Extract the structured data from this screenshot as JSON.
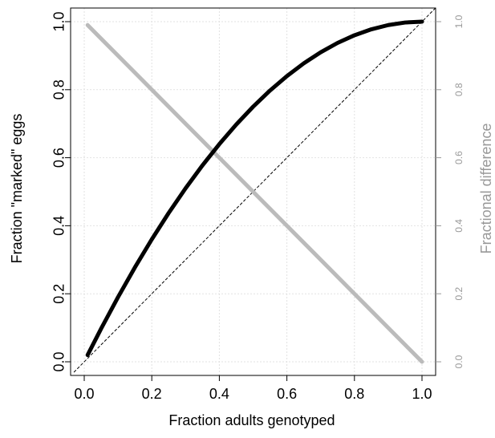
{
  "chart_data": {
    "type": "line",
    "xlabel": "Fraction adults genotyped",
    "ylabel": "Fraction \"marked\" eggs",
    "ylabel_right": "Fractional difference",
    "xlim": [
      0,
      1
    ],
    "ylim": [
      0,
      1
    ],
    "ylim_right": [
      0,
      1
    ],
    "x_ticks": [
      "0.0",
      "0.2",
      "0.4",
      "0.6",
      "0.8",
      "1.0"
    ],
    "y_ticks": [
      "0.0",
      "0.2",
      "0.4",
      "0.6",
      "0.8",
      "1.0"
    ],
    "y_ticks_right": [
      "0.0",
      "0.2",
      "0.4",
      "0.6",
      "0.8",
      "1.0"
    ],
    "grid": true,
    "series": [
      {
        "axis": "left",
        "color": "#000000",
        "style": "solid",
        "x": [
          0.01,
          0.05,
          0.1,
          0.15,
          0.2,
          0.25,
          0.3,
          0.35,
          0.4,
          0.45,
          0.5,
          0.55,
          0.6,
          0.65,
          0.7,
          0.75,
          0.8,
          0.85,
          0.9,
          0.95,
          1.0
        ],
        "y": [
          0.0199,
          0.0975,
          0.19,
          0.2775,
          0.36,
          0.4375,
          0.51,
          0.5775,
          0.64,
          0.6975,
          0.75,
          0.7975,
          0.84,
          0.8775,
          0.91,
          0.9375,
          0.96,
          0.9775,
          0.99,
          0.9975,
          1.0
        ]
      },
      {
        "axis": "right",
        "color": "#bbbbbb",
        "style": "solid",
        "x": [
          0.01,
          0.1,
          0.2,
          0.3,
          0.4,
          0.5,
          0.6,
          0.7,
          0.8,
          0.9,
          1.0
        ],
        "y": [
          0.99,
          0.9,
          0.8,
          0.7,
          0.6,
          0.5,
          0.4,
          0.3,
          0.2,
          0.1,
          0.0
        ]
      },
      {
        "axis": "left",
        "color": "#000000",
        "style": "dashed",
        "x": [
          -0.03,
          1.04
        ],
        "y": [
          -0.03,
          1.04
        ]
      }
    ]
  }
}
